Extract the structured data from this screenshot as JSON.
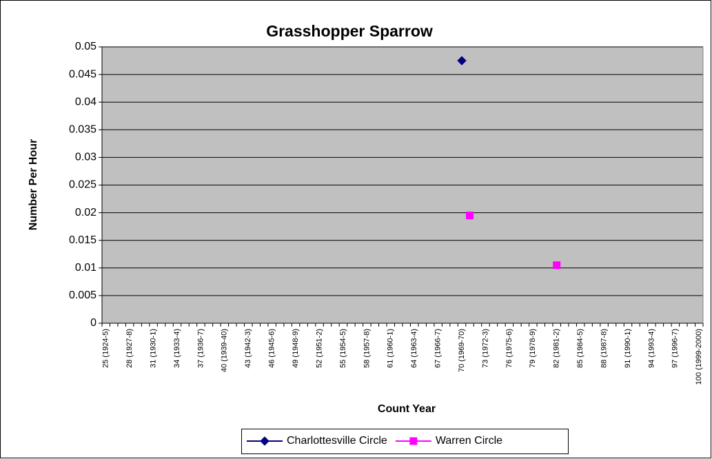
{
  "chart_data": {
    "type": "line",
    "title": "Grasshopper Sparrow",
    "x_label": "Count Year",
    "y_label": "Number Per Hour",
    "categories": [
      "25 (1924-5)",
      null,
      null,
      "28 (1927-8)",
      null,
      null,
      "31 (1930-1)",
      null,
      null,
      "34 (1933-4)",
      null,
      null,
      "37 (1936-7)",
      null,
      null,
      "40 (1939-40)",
      null,
      null,
      "43 (1942-3)",
      null,
      null,
      "46 (1945-6)",
      null,
      null,
      "49 (1948-9)",
      null,
      null,
      "52 (1951-2)",
      null,
      null,
      "55 (1954-5)",
      null,
      null,
      "58 (1957-8)",
      null,
      null,
      "61 (1960-1)",
      null,
      null,
      "64 (1963-4)",
      null,
      null,
      "67 (1966-7)",
      null,
      null,
      "70 (1969-70)",
      null,
      null,
      "73 (1972-3)",
      null,
      null,
      "76 (1975-6)",
      null,
      null,
      "79 (1978-9)",
      null,
      null,
      "82 (1981-2)",
      null,
      null,
      "85 (1984-5)",
      null,
      null,
      "88 (1987-8)",
      null,
      null,
      "91 (1990-1)",
      null,
      null,
      "94 (1993-4)",
      null,
      null,
      "97 (1996-7)",
      null,
      null,
      "100 (1999-2000)"
    ],
    "series": [
      {
        "name": "Charlottesville Circle",
        "color": "#000080",
        "marker": "diamond",
        "values": [
          null,
          null,
          null,
          null,
          null,
          null,
          null,
          null,
          null,
          null,
          null,
          null,
          null,
          null,
          null,
          null,
          null,
          null,
          null,
          null,
          null,
          null,
          null,
          null,
          null,
          null,
          null,
          null,
          null,
          null,
          null,
          null,
          null,
          null,
          null,
          null,
          null,
          null,
          null,
          null,
          null,
          null,
          null,
          null,
          null,
          0.0475,
          null,
          null,
          null,
          null,
          null,
          null,
          null,
          null,
          null,
          null,
          null,
          null,
          null,
          null,
          null,
          null,
          null,
          null,
          null,
          null,
          null,
          null,
          null,
          null,
          null,
          null,
          null,
          null,
          null,
          null
        ]
      },
      {
        "name": "Warren Circle",
        "color": "#ff00ff",
        "marker": "square",
        "values": [
          null,
          null,
          null,
          null,
          null,
          null,
          null,
          null,
          null,
          null,
          null,
          null,
          null,
          null,
          null,
          null,
          null,
          null,
          null,
          null,
          null,
          null,
          null,
          null,
          null,
          null,
          null,
          null,
          null,
          null,
          null,
          null,
          null,
          null,
          null,
          null,
          null,
          null,
          null,
          null,
          null,
          null,
          null,
          null,
          null,
          null,
          0.0195,
          null,
          null,
          null,
          null,
          null,
          null,
          null,
          null,
          null,
          null,
          0.0105,
          null,
          null,
          null,
          null,
          null,
          null,
          null,
          null,
          null,
          null,
          null,
          null,
          null,
          null,
          null,
          null,
          null,
          null
        ]
      }
    ],
    "ylim": [
      0,
      0.05
    ],
    "yticks": [
      0,
      0.005,
      0.01,
      0.015,
      0.02,
      0.025,
      0.03,
      0.035,
      0.04,
      0.045,
      0.05
    ],
    "grid": true,
    "plot_background": "#c0c0c0",
    "legend": "bottom"
  }
}
